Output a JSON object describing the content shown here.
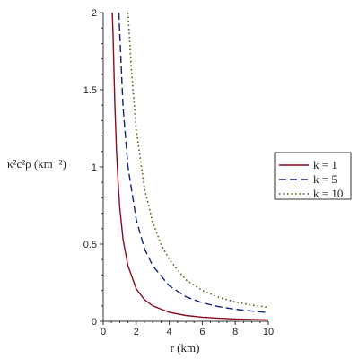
{
  "chart_data": {
    "type": "line",
    "xlabel": "r (km)",
    "ylabel": "κ²c²ρ (km⁻²)",
    "xlim": [
      0,
      10
    ],
    "ylim": [
      0,
      2
    ],
    "x_ticks": [
      "0",
      "2",
      "4",
      "6",
      "8",
      "10"
    ],
    "y_ticks": [
      "0",
      "0.5",
      "1",
      "1.5",
      "2"
    ],
    "legend_position": "right",
    "series": [
      {
        "name": "k = 1",
        "color": "#8b0a1e",
        "style": "solid",
        "x": [
          0.55,
          0.6,
          0.7,
          0.8,
          0.9,
          1.0,
          1.2,
          1.5,
          2.0,
          2.5,
          3.0,
          4.0,
          5.0,
          6.0,
          7.0,
          8.0,
          9.0,
          10.0
        ],
        "y": [
          2.0,
          1.85,
          1.42,
          1.12,
          0.9,
          0.74,
          0.53,
          0.36,
          0.21,
          0.14,
          0.1,
          0.058,
          0.038,
          0.027,
          0.02,
          0.015,
          0.012,
          0.009
        ]
      },
      {
        "name": "k = 5",
        "color": "#10227a",
        "style": "dashed",
        "x": [
          0.95,
          1.0,
          1.2,
          1.5,
          2.0,
          2.5,
          3.0,
          4.0,
          5.0,
          6.0,
          7.0,
          8.0,
          9.0,
          10.0
        ],
        "y": [
          2.0,
          1.87,
          1.39,
          1.0,
          0.66,
          0.47,
          0.36,
          0.23,
          0.16,
          0.12,
          0.095,
          0.078,
          0.066,
          0.057
        ]
      },
      {
        "name": "k = 10",
        "color": "#4d5a0f",
        "style": "dotted",
        "x": [
          1.5,
          1.7,
          2.0,
          2.5,
          3.0,
          3.5,
          4.0,
          5.0,
          6.0,
          7.0,
          8.0,
          9.0,
          10.0
        ],
        "y": [
          2.0,
          1.64,
          1.24,
          0.86,
          0.64,
          0.5,
          0.4,
          0.27,
          0.2,
          0.155,
          0.125,
          0.105,
          0.09
        ]
      }
    ]
  }
}
